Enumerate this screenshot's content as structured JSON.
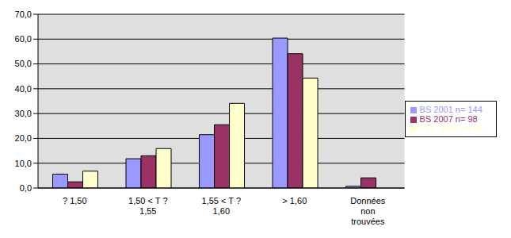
{
  "chart_data": {
    "type": "bar",
    "categories": [
      "? 1,50",
      "1,50 < T ? 1,55",
      "1,55 < T ? 1,60",
      "> 1,60",
      "Données non trouvées"
    ],
    "series": [
      {
        "name": "BS 2001 n= 144",
        "color": "#9999ff",
        "values": [
          5.6,
          11.8,
          21.5,
          60.4,
          0.7
        ]
      },
      {
        "name": "BS 2007 n= 98",
        "color": "#993366",
        "values": [
          2.5,
          13.0,
          25.5,
          54.1,
          4.1
        ]
      },
      {
        "name": "STC 2007 n= 88",
        "color": "#ffffcc",
        "values": [
          6.8,
          15.9,
          34.1,
          44.3,
          0.0
        ]
      }
    ],
    "ylim": [
      0,
      70
    ],
    "yticks": [
      {
        "value": 0,
        "label": "0,0"
      },
      {
        "value": 10,
        "label": "10,0"
      },
      {
        "value": 20,
        "label": "20,0"
      },
      {
        "value": 30,
        "label": "30,0"
      },
      {
        "value": 40,
        "label": "40,0"
      },
      {
        "value": 50,
        "label": "50,0"
      },
      {
        "value": 60,
        "label": "60,0"
      },
      {
        "value": 70,
        "label": "70,0"
      }
    ],
    "grid": true,
    "legend": "right"
  }
}
